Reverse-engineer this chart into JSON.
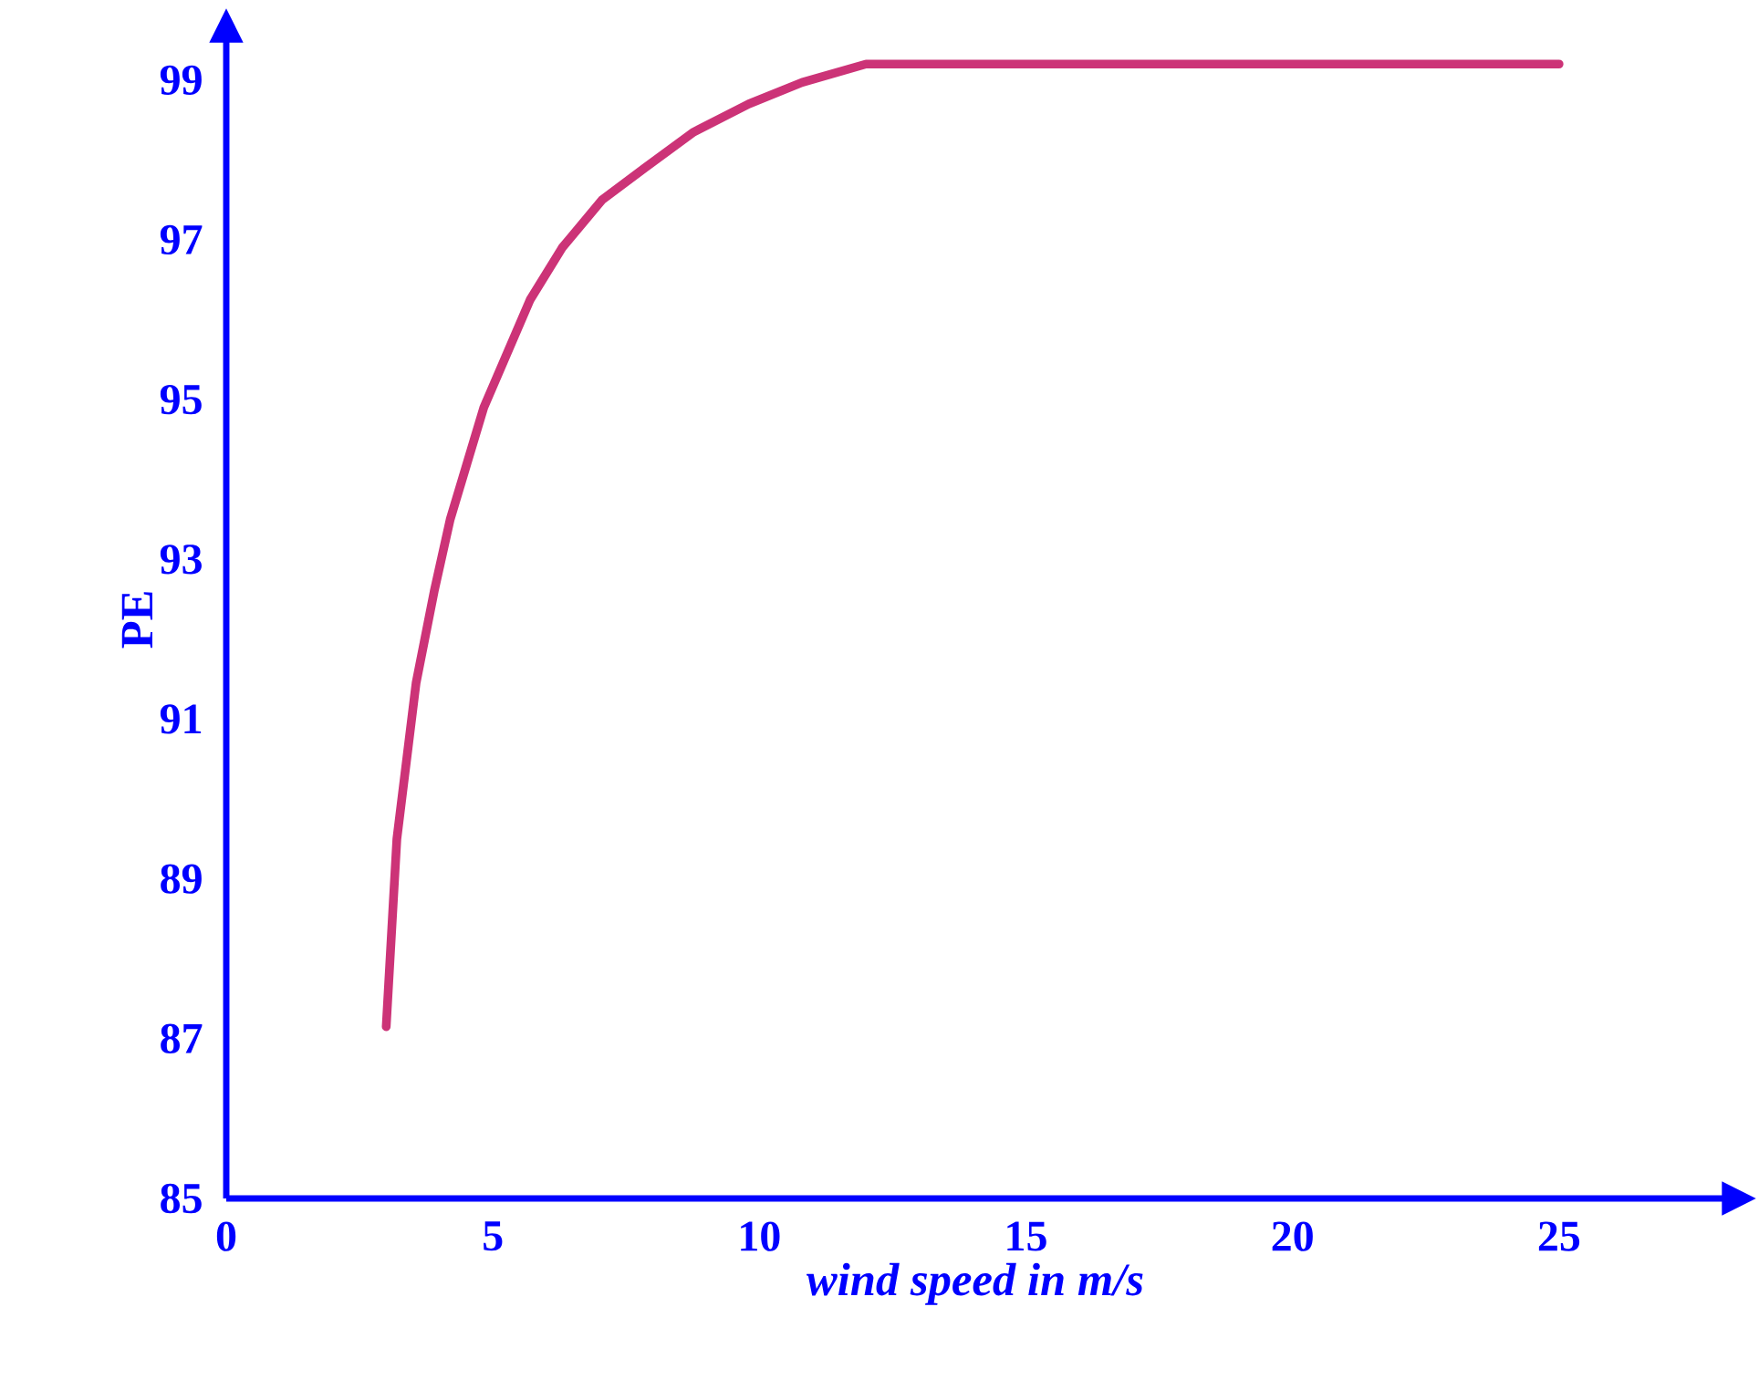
{
  "chart_data": {
    "type": "line",
    "xlabel": "wind speed in m/s",
    "ylabel": "PE",
    "color": "#cc3377",
    "x": [
      3.0,
      3.2,
      3.56,
      3.9,
      4.2,
      4.83,
      5.7,
      6.3,
      7.05,
      7.85,
      8.77,
      9.8,
      10.8,
      12.0,
      25
    ],
    "values": [
      87.15,
      89.5,
      91.45,
      92.6,
      93.5,
      94.9,
      96.25,
      96.9,
      97.5,
      97.9,
      98.35,
      98.7,
      98.97,
      99.2,
      99.2
    ],
    "xlim": [
      0,
      28.1
    ],
    "ylim": [
      85,
      99.5
    ],
    "xticks": [
      0,
      5,
      10,
      15,
      20,
      25
    ],
    "yticks": [
      85,
      87,
      89,
      91,
      93,
      95,
      97,
      99
    ],
    "grid": false
  }
}
